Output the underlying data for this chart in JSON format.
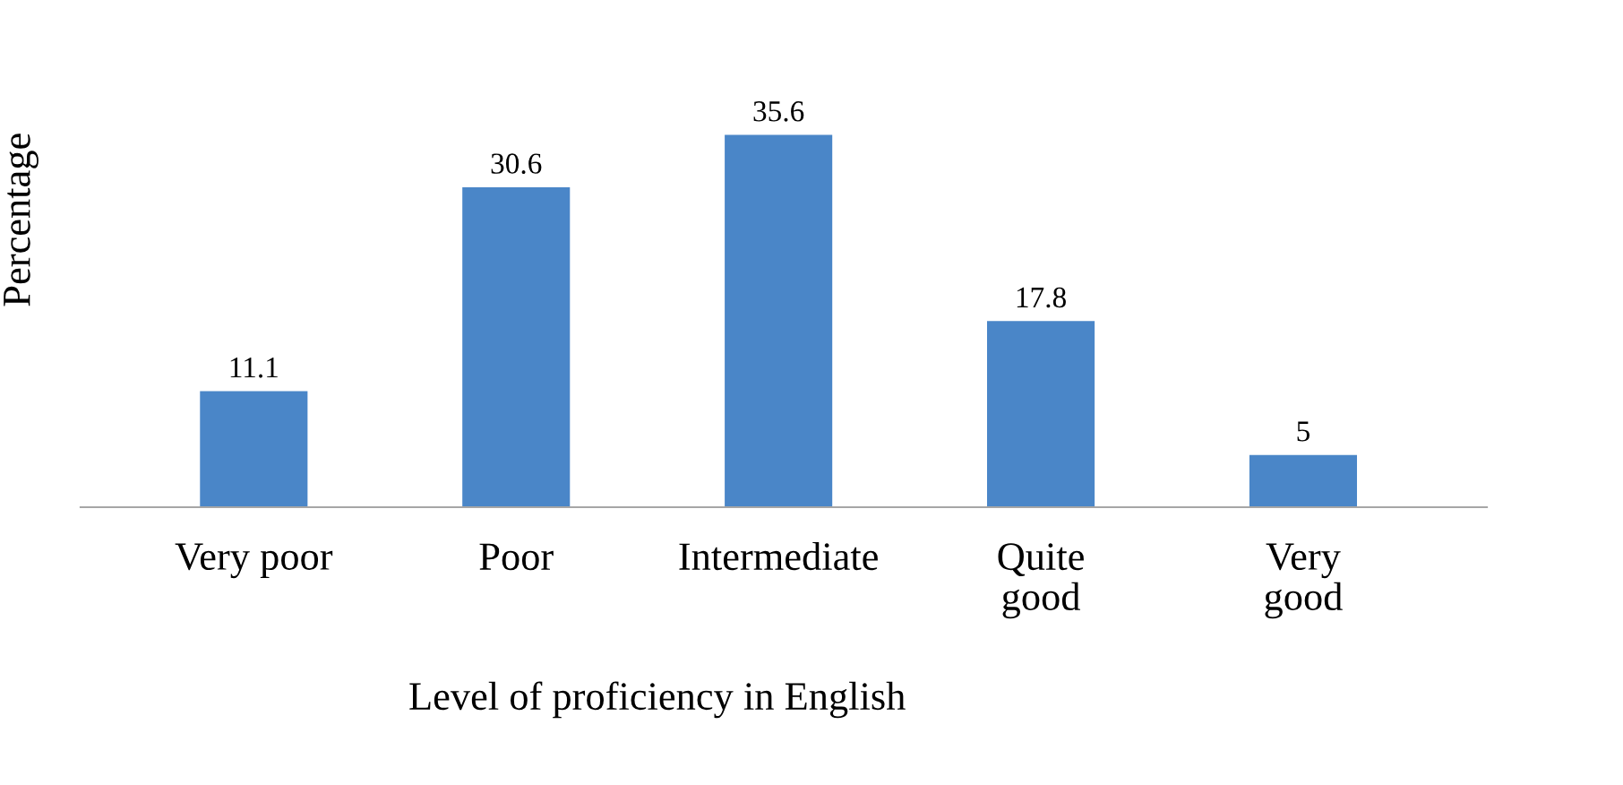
{
  "chart_data": {
    "type": "bar",
    "categories": [
      "Very poor",
      "Poor",
      "Intermediate",
      "Quite\ngood",
      "Very\ngood"
    ],
    "values": [
      11.1,
      30.6,
      35.6,
      17.8,
      5
    ],
    "color": "#4a86c8",
    "data_labels": true,
    "tick_labels": "x",
    "xlabel": "Level of proficiency in English",
    "ylabel": "Percentage",
    "grid": false,
    "legend": false
  }
}
